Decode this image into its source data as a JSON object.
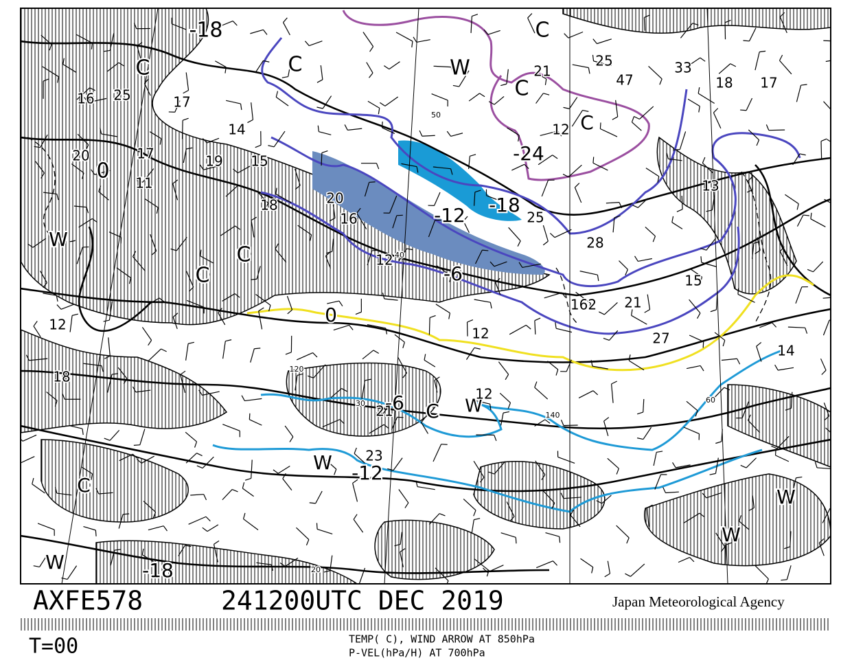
{
  "header": {
    "code": "AXFE578",
    "time": "241200UTC DEC 2019",
    "agency": "Japan Meteorological Agency"
  },
  "footer": {
    "step": "T=00",
    "legend": [
      "TEMP( C), WIND ARROW AT 850hPa",
      "P-VEL(hPa/H) AT 700hPa"
    ]
  },
  "map": {
    "labels": [
      "-18",
      "C",
      "C",
      "W",
      "C",
      "C",
      "C",
      "-24",
      "0",
      "-12",
      "-18",
      "-6",
      "C",
      "C",
      "W",
      "0",
      "-6",
      "C",
      "W",
      "W",
      "-12",
      "C",
      "W",
      "-18",
      "W",
      "W",
      "25",
      "16",
      "17",
      "14",
      "20",
      "17",
      "11",
      "19",
      "15",
      "18",
      "20",
      "16",
      "12",
      "21",
      "25",
      "47",
      "33",
      "18",
      "17",
      "12",
      "13",
      "28",
      "25",
      "12",
      "27",
      "15",
      "21",
      "162",
      "14",
      "12",
      "18",
      "12",
      "23",
      "21",
      "50",
      "40",
      "120",
      "30",
      "140",
      "20",
      "60"
    ]
  }
}
